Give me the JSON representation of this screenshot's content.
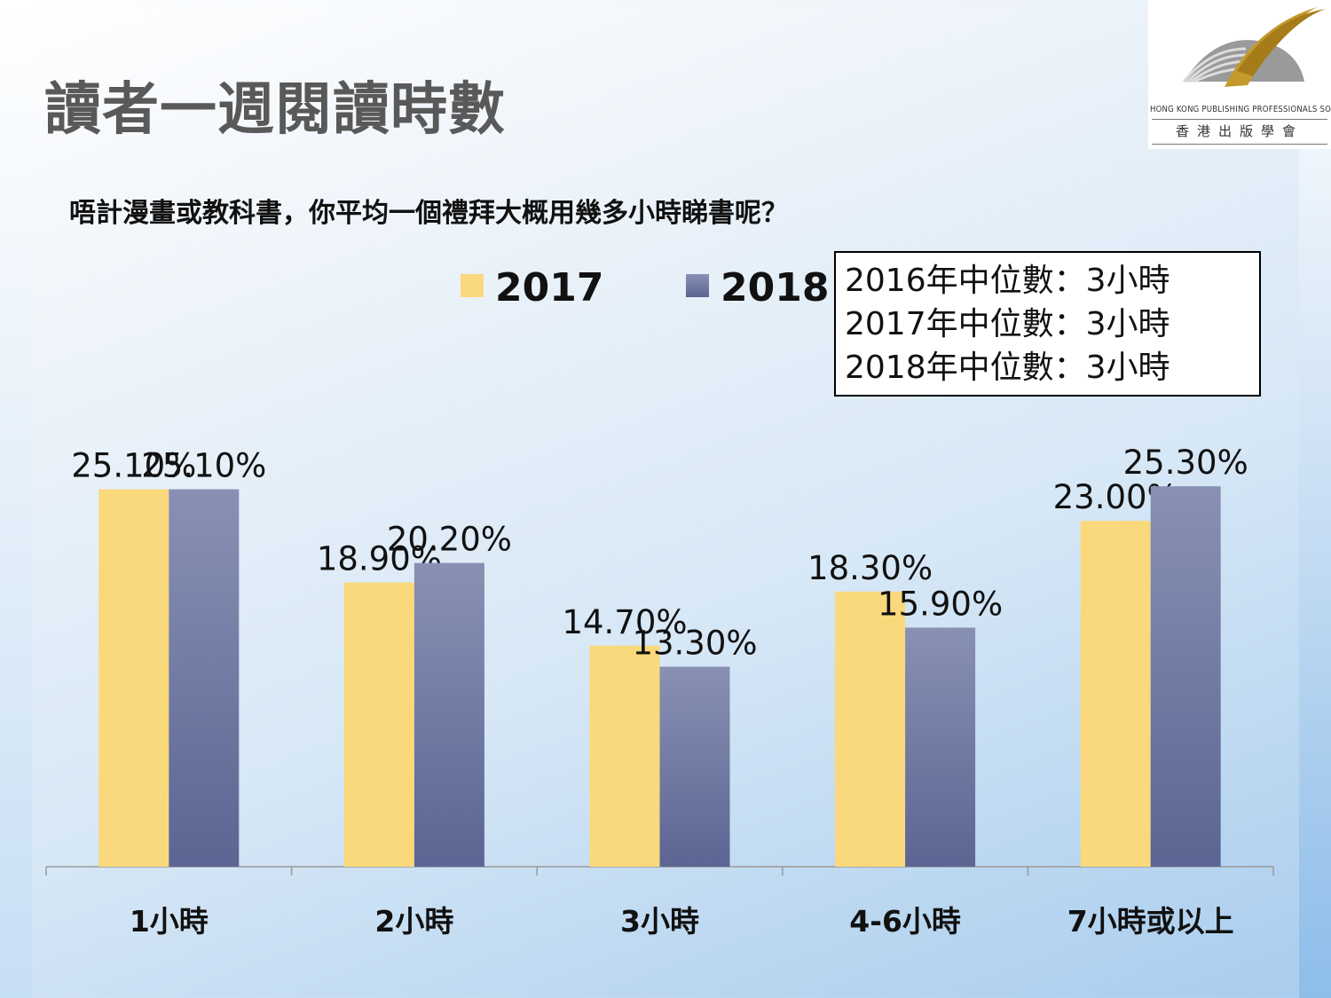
{
  "title": "讀者一週閱讀時數",
  "question": "唔計漫畫或教科書，你平均一個禮拜大概用幾多小時睇書呢？",
  "logo": {
    "english": "HONG KONG PUBLISHING PROFESSIONALS SOCIETY",
    "chinese": "香港出版學會"
  },
  "median_notes": [
    "2016年中位數：3小時",
    "2017年中位數：3小時",
    "2018年中位數：3小時"
  ],
  "chart_data": {
    "type": "bar",
    "categories": [
      "1小時",
      "2小時",
      "3小時",
      "4-6小時",
      "7小時或以上"
    ],
    "series": [
      {
        "name": "2017",
        "values": [
          25.1,
          18.9,
          14.7,
          18.3,
          23.0
        ],
        "labels": [
          "25.10%",
          "18.90%",
          "14.70%",
          "18.30%",
          "23.00%"
        ],
        "color": "#f9d97b"
      },
      {
        "name": "2018",
        "values": [
          25.1,
          20.2,
          13.3,
          15.9,
          25.3
        ],
        "labels": [
          "25.10%",
          "20.20%",
          "13.30%",
          "15.90%",
          "25.30%"
        ],
        "color": "#6b74a0"
      }
    ],
    "ylim": [
      0,
      27.5
    ],
    "legend": "top-center",
    "grid": false
  }
}
